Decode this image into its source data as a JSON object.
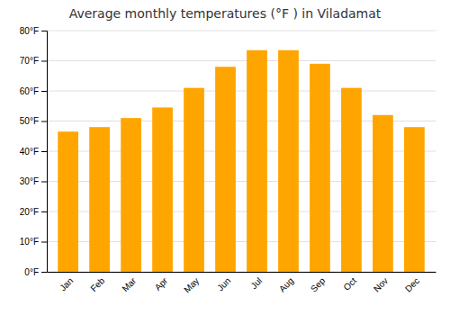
{
  "chart_data": {
    "type": "bar",
    "title": "Average monthly temperatures (°F ) in Viladamat",
    "categories": [
      "Jan",
      "Feb",
      "Mar",
      "Apr",
      "May",
      "Jun",
      "Jul",
      "Aug",
      "Sep",
      "Oct",
      "Nov",
      "Dec"
    ],
    "values": [
      46.5,
      48.0,
      51.0,
      54.5,
      61.0,
      68.0,
      73.5,
      73.5,
      69.0,
      61.0,
      52.0,
      48.0
    ],
    "color": "#FFA500",
    "ylim": [
      0,
      80
    ],
    "yticks": [
      {
        "value": 0,
        "label": "0°F"
      },
      {
        "value": 10,
        "label": "10°F"
      },
      {
        "value": 20,
        "label": "20°F"
      },
      {
        "value": 30,
        "label": "30°F"
      },
      {
        "value": 40,
        "label": "40°F"
      },
      {
        "value": 50,
        "label": "50°F"
      },
      {
        "value": 60,
        "label": "60°F"
      },
      {
        "value": 70,
        "label": "70°F"
      },
      {
        "value": 80,
        "label": "80°F"
      }
    ],
    "grid": true
  }
}
